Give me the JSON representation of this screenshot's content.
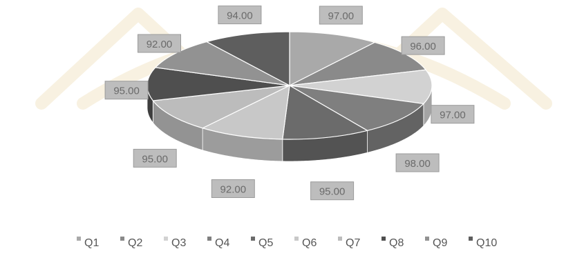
{
  "chart_data": {
    "type": "pie",
    "variant": "3d",
    "categories": [
      "Q1",
      "Q2",
      "Q3",
      "Q4",
      "Q5",
      "Q6",
      "Q7",
      "Q8",
      "Q9",
      "Q10"
    ],
    "values": [
      97.0,
      96.0,
      97.0,
      98.0,
      95.0,
      92.0,
      95.0,
      95.0,
      92.0,
      94.0
    ],
    "value_labels": [
      "97.00",
      "96.00",
      "97.00",
      "98.00",
      "95.00",
      "92.00",
      "95.00",
      "95.00",
      "92.00",
      "94.00"
    ],
    "title": "",
    "legend_position": "bottom",
    "colors": [
      "#a9a9a9",
      "#8a8a8a",
      "#d2d2d2",
      "#7f7f7f",
      "#6b6b6b",
      "#c8c8c8",
      "#bcbcbc",
      "#4f4f4f",
      "#929292",
      "#5e5e5e"
    ],
    "label_background": "#bdbdbd",
    "label_text_color": "#6a6a6a",
    "background_watermark_color": "#f3e6c8"
  }
}
